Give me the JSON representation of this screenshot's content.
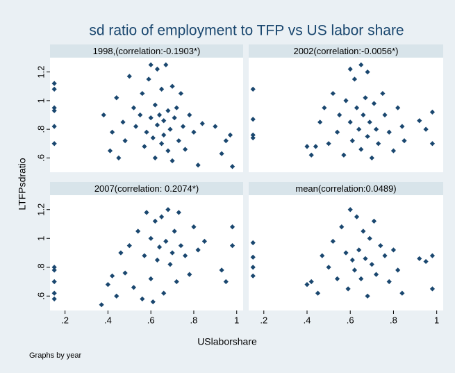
{
  "figure": {
    "title": "sd ratio of employment to TFP vs US labor share",
    "xlabel": "USlaborshare",
    "ylabel": "LTFPsdratio",
    "note": "Graphs by year"
  },
  "chart_data": [
    {
      "type": "scatter",
      "title": "1998,(correlation:-0.1903*)",
      "color": "#1a476f",
      "xlim": [
        0.13,
        1.03
      ],
      "ylim": [
        0.5,
        1.3
      ],
      "yticks": [
        {
          "value": 0.6,
          "label": ".6"
        },
        {
          "value": 0.8,
          "label": ".8"
        },
        1,
        {
          "value": 1.2,
          "label": "1.2"
        }
      ],
      "x": [
        0.15,
        0.15,
        0.15,
        0.15,
        0.15,
        0.15,
        0.38,
        0.41,
        0.42,
        0.44,
        0.45,
        0.47,
        0.48,
        0.5,
        0.52,
        0.53,
        0.55,
        0.56,
        0.57,
        0.58,
        0.59,
        0.6,
        0.6,
        0.61,
        0.62,
        0.62,
        0.63,
        0.63,
        0.64,
        0.65,
        0.65,
        0.66,
        0.66,
        0.67,
        0.68,
        0.68,
        0.69,
        0.7,
        0.7,
        0.71,
        0.72,
        0.73,
        0.74,
        0.75,
        0.76,
        0.78,
        0.8,
        0.82,
        0.84,
        0.9,
        0.93,
        0.95,
        0.97,
        0.98
      ],
      "y": [
        1.12,
        1.08,
        0.95,
        0.93,
        0.82,
        0.7,
        0.9,
        0.65,
        0.78,
        1.02,
        0.6,
        0.85,
        0.72,
        1.17,
        0.95,
        0.82,
        0.9,
        1.05,
        0.68,
        0.78,
        1.15,
        0.88,
        1.25,
        0.74,
        0.97,
        0.6,
        1.22,
        0.83,
        0.9,
        0.7,
        1.08,
        0.86,
        0.76,
        1.25,
        0.93,
        0.65,
        0.8,
        1.1,
        0.58,
        0.88,
        0.95,
        0.72,
        1.05,
        0.82,
        0.66,
        0.9,
        0.78,
        0.55,
        0.84,
        0.82,
        0.63,
        0.72,
        0.76,
        0.54
      ]
    },
    {
      "type": "scatter",
      "title": "2002(correlation:-0.0056*)",
      "color": "#1a476f",
      "xlim": [
        0.13,
        1.03
      ],
      "ylim": [
        0.5,
        1.3
      ],
      "x": [
        0.15,
        0.15,
        0.15,
        0.15,
        0.4,
        0.42,
        0.44,
        0.46,
        0.48,
        0.5,
        0.52,
        0.54,
        0.55,
        0.57,
        0.58,
        0.6,
        0.6,
        0.61,
        0.62,
        0.63,
        0.64,
        0.65,
        0.65,
        0.66,
        0.67,
        0.68,
        0.68,
        0.69,
        0.7,
        0.71,
        0.72,
        0.73,
        0.75,
        0.76,
        0.78,
        0.8,
        0.82,
        0.84,
        0.85,
        0.92,
        0.95,
        0.98,
        0.98
      ],
      "y": [
        1.08,
        0.87,
        0.76,
        0.74,
        0.68,
        0.62,
        0.68,
        0.85,
        0.95,
        0.7,
        1.05,
        0.78,
        0.9,
        0.62,
        1.0,
        1.22,
        0.85,
        0.72,
        1.15,
        0.95,
        0.8,
        1.25,
        0.66,
        0.9,
        1.02,
        0.75,
        1.2,
        0.85,
        0.6,
        0.98,
        0.8,
        0.7,
        1.05,
        0.9,
        0.78,
        0.65,
        0.95,
        0.82,
        0.72,
        0.86,
        0.8,
        0.92,
        0.7
      ]
    },
    {
      "type": "scatter",
      "title": "2007(correlation: 0.2074*)",
      "color": "#1a476f",
      "xlim": [
        0.13,
        1.03
      ],
      "ylim": [
        0.5,
        1.3
      ],
      "xticks": [
        {
          "value": 0.2,
          "label": ".2"
        },
        {
          "value": 0.4,
          "label": ".4"
        },
        {
          "value": 0.6,
          "label": ".6"
        },
        {
          "value": 0.8,
          "label": ".8"
        },
        1
      ],
      "yticks": [
        {
          "value": 0.6,
          "label": ".6"
        },
        {
          "value": 0.8,
          "label": ".8"
        },
        1,
        {
          "value": 1.2,
          "label": "1.2"
        }
      ],
      "x": [
        0.15,
        0.15,
        0.15,
        0.15,
        0.15,
        0.37,
        0.4,
        0.42,
        0.44,
        0.46,
        0.48,
        0.5,
        0.52,
        0.54,
        0.56,
        0.57,
        0.58,
        0.6,
        0.6,
        0.61,
        0.62,
        0.63,
        0.64,
        0.65,
        0.66,
        0.67,
        0.68,
        0.69,
        0.7,
        0.71,
        0.72,
        0.73,
        0.74,
        0.76,
        0.78,
        0.8,
        0.82,
        0.85,
        0.93,
        0.95,
        0.98,
        0.98
      ],
      "y": [
        0.8,
        0.78,
        0.7,
        0.62,
        0.58,
        0.54,
        0.68,
        0.74,
        0.6,
        0.9,
        0.76,
        0.95,
        0.66,
        1.05,
        0.58,
        0.88,
        1.18,
        0.72,
        1.0,
        0.56,
        1.12,
        0.85,
        0.94,
        1.15,
        0.62,
        0.98,
        1.2,
        0.82,
        0.9,
        1.05,
        0.7,
        1.18,
        0.95,
        0.88,
        0.75,
        1.08,
        0.92,
        0.98,
        0.78,
        0.7,
        1.08,
        0.95
      ]
    },
    {
      "type": "scatter",
      "title": "mean(correlation:0.0489)",
      "color": "#1a476f",
      "xlim": [
        0.13,
        1.03
      ],
      "ylim": [
        0.5,
        1.3
      ],
      "xticks": [
        {
          "value": 0.2,
          "label": ".2"
        },
        {
          "value": 0.4,
          "label": ".4"
        },
        {
          "value": 0.6,
          "label": ".6"
        },
        {
          "value": 0.8,
          "label": ".8"
        },
        1
      ],
      "x": [
        0.15,
        0.15,
        0.15,
        0.15,
        0.4,
        0.42,
        0.45,
        0.47,
        0.5,
        0.52,
        0.54,
        0.56,
        0.58,
        0.59,
        0.6,
        0.61,
        0.62,
        0.63,
        0.64,
        0.65,
        0.66,
        0.67,
        0.68,
        0.69,
        0.7,
        0.71,
        0.72,
        0.74,
        0.76,
        0.78,
        0.8,
        0.82,
        0.84,
        0.92,
        0.95,
        0.98,
        0.98
      ],
      "y": [
        0.97,
        0.87,
        0.8,
        0.74,
        0.68,
        0.7,
        0.62,
        0.88,
        0.8,
        0.98,
        0.72,
        1.08,
        0.9,
        0.65,
        1.2,
        0.85,
        0.78,
        1.15,
        0.92,
        0.72,
        1.05,
        0.86,
        0.6,
        1.0,
        0.82,
        1.12,
        0.75,
        0.95,
        0.88,
        0.7,
        0.92,
        0.78,
        0.62,
        0.86,
        0.84,
        0.88,
        0.65
      ]
    }
  ]
}
